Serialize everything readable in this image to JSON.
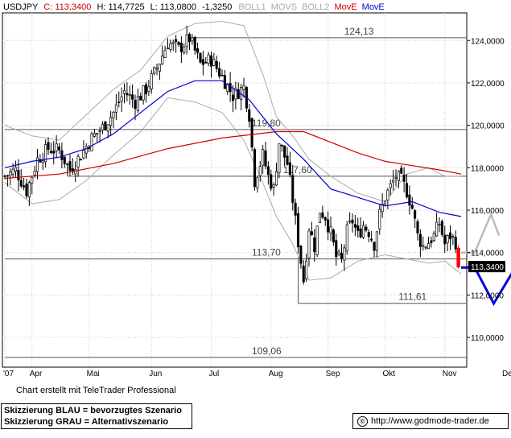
{
  "header": {
    "symbol": "USDJPY",
    "close": "C: 113,3400",
    "high": "H: 114,7725",
    "low": "L: 113,0800",
    "change": "-1,3250",
    "indicators": [
      "BOLL1",
      "MOVS",
      "BOLL2",
      "MovE",
      "MovE"
    ]
  },
  "footer": {
    "credit": "Chart erstellt mit TeleTrader Professional",
    "legend_blue": "Skizzierung BLAU = bevorzugtes Szenario",
    "legend_grey": "Skizzierung GRAU = Alternativszenario",
    "url": "http://www.godmode-trader.de",
    "url_icon": "copyright-icon"
  },
  "colors": {
    "price": "#000000",
    "ma_fast": "#0000cc",
    "ma_slow": "#cc0000",
    "bollinger": "#aaaaaa",
    "scenario_blue": "#0000dd",
    "scenario_grey": "#bbbbbb",
    "last_candle": "#ff0000",
    "level_line": "#555555"
  },
  "chart_data": {
    "type": "candlestick",
    "title": "USDJPY",
    "ylim": [
      108.6,
      125.3
    ],
    "y_ticks": [
      "110,0000",
      "112,0000",
      "114,0000",
      "116,0000",
      "118,0000",
      "120,0000",
      "122,0000",
      "124,0000"
    ],
    "y_tick_values": [
      110,
      112,
      114,
      116,
      118,
      120,
      122,
      124
    ],
    "x_ticks": [
      "'07",
      "Apr",
      "Mai",
      "Jun",
      "Jul",
      "Aug",
      "Sep",
      "Okt",
      "Nov",
      "Dez"
    ],
    "x_tick_index": [
      0,
      10,
      31,
      54,
      76,
      98,
      119,
      140,
      162,
      184
    ],
    "last_price_label": "113,3400",
    "last_price": 113.34,
    "n_sessions": 168,
    "levels": [
      {
        "label": "124,13",
        "value": 124.13,
        "from": 68,
        "to": 175
      },
      {
        "label": "119,80",
        "value": 119.8,
        "from": 0,
        "to": 190
      },
      {
        "label": "117,60",
        "value": 117.6,
        "from": 23,
        "to": 190
      },
      {
        "label": "113,70",
        "value": 113.7,
        "from": 0,
        "to": 190
      },
      {
        "label": "111,61",
        "value": 111.61,
        "from": 108,
        "to": 190
      },
      {
        "label": "109,06",
        "value": 109.06,
        "from": 0,
        "to": 190
      }
    ],
    "close_path": [
      [
        0,
        117.6
      ],
      [
        4,
        117.9
      ],
      [
        8,
        116.9
      ],
      [
        12,
        118.4
      ],
      [
        16,
        118.9
      ],
      [
        20,
        118.8
      ],
      [
        24,
        117.9
      ],
      [
        28,
        118.6
      ],
      [
        32,
        119.4
      ],
      [
        36,
        119.9
      ],
      [
        40,
        120.6
      ],
      [
        44,
        121.6
      ],
      [
        48,
        121.1
      ],
      [
        52,
        121.7
      ],
      [
        56,
        122.7
      ],
      [
        60,
        123.9
      ],
      [
        64,
        123.6
      ],
      [
        68,
        124.1
      ],
      [
        72,
        122.9
      ],
      [
        76,
        123.1
      ],
      [
        80,
        122.3
      ],
      [
        84,
        121.4
      ],
      [
        88,
        121.8
      ],
      [
        90,
        120.5
      ],
      [
        92,
        117.4
      ],
      [
        95,
        118.6
      ],
      [
        97,
        117.6
      ],
      [
        99,
        117.0
      ],
      [
        101,
        119.2
      ],
      [
        104,
        118.2
      ],
      [
        106,
        116.5
      ],
      [
        108,
        114.5
      ],
      [
        110,
        112.7
      ],
      [
        112,
        115.2
      ],
      [
        114,
        114.3
      ],
      [
        116,
        116.0
      ],
      [
        118,
        115.7
      ],
      [
        120,
        114.9
      ],
      [
        122,
        113.8
      ],
      [
        124,
        113.6
      ],
      [
        126,
        115.0
      ],
      [
        128,
        115.5
      ],
      [
        130,
        114.8
      ],
      [
        132,
        115.3
      ],
      [
        134,
        115.0
      ],
      [
        136,
        114.4
      ],
      [
        138,
        115.8
      ],
      [
        140,
        116.6
      ],
      [
        142,
        117.1
      ],
      [
        144,
        117.6
      ],
      [
        146,
        117.4
      ],
      [
        148,
        116.9
      ],
      [
        150,
        116.1
      ],
      [
        152,
        114.8
      ],
      [
        154,
        114.3
      ],
      [
        156,
        114.5
      ],
      [
        158,
        114.8
      ],
      [
        160,
        115.4
      ],
      [
        162,
        114.4
      ],
      [
        164,
        114.8
      ],
      [
        166,
        114.5
      ],
      [
        167,
        113.34
      ]
    ],
    "ma_fast_path": [
      [
        0,
        118.0
      ],
      [
        10,
        118.3
      ],
      [
        20,
        118.5
      ],
      [
        30,
        118.9
      ],
      [
        40,
        119.6
      ],
      [
        50,
        120.6
      ],
      [
        60,
        121.6
      ],
      [
        70,
        122.1
      ],
      [
        80,
        122.1
      ],
      [
        90,
        121.2
      ],
      [
        100,
        119.6
      ],
      [
        110,
        118.4
      ],
      [
        120,
        117.0
      ],
      [
        130,
        116.6
      ],
      [
        140,
        116.2
      ],
      [
        150,
        116.4
      ],
      [
        160,
        115.9
      ],
      [
        168,
        115.7
      ]
    ],
    "ma_slow_path": [
      [
        0,
        117.5
      ],
      [
        20,
        117.7
      ],
      [
        40,
        118.2
      ],
      [
        60,
        118.9
      ],
      [
        80,
        119.4
      ],
      [
        100,
        119.7
      ],
      [
        110,
        119.7
      ],
      [
        120,
        119.2
      ],
      [
        130,
        118.7
      ],
      [
        140,
        118.3
      ],
      [
        150,
        118.1
      ],
      [
        160,
        117.9
      ],
      [
        168,
        117.7
      ]
    ],
    "boll_upper_path": [
      [
        0,
        120.0
      ],
      [
        10,
        119.5
      ],
      [
        20,
        119.3
      ],
      [
        30,
        120.5
      ],
      [
        40,
        121.7
      ],
      [
        50,
        122.6
      ],
      [
        60,
        124.2
      ],
      [
        70,
        124.8
      ],
      [
        80,
        124.9
      ],
      [
        88,
        124.7
      ],
      [
        95,
        122.4
      ],
      [
        100,
        120.4
      ],
      [
        106,
        119.5
      ],
      [
        112,
        118.4
      ],
      [
        120,
        117.6
      ],
      [
        130,
        116.8
      ],
      [
        140,
        116.4
      ],
      [
        148,
        117.7
      ],
      [
        156,
        118.0
      ],
      [
        162,
        117.6
      ],
      [
        168,
        117.6
      ]
    ],
    "boll_lower_path": [
      [
        0,
        117.3
      ],
      [
        10,
        116.3
      ],
      [
        20,
        116.5
      ],
      [
        30,
        117.4
      ],
      [
        40,
        118.6
      ],
      [
        50,
        119.7
      ],
      [
        60,
        121.3
      ],
      [
        70,
        121.1
      ],
      [
        80,
        120.6
      ],
      [
        88,
        119.3
      ],
      [
        95,
        117.3
      ],
      [
        100,
        115.7
      ],
      [
        106,
        114.4
      ],
      [
        112,
        112.7
      ],
      [
        120,
        112.8
      ],
      [
        130,
        113.6
      ],
      [
        140,
        113.9
      ],
      [
        148,
        113.7
      ],
      [
        156,
        113.5
      ],
      [
        162,
        113.6
      ],
      [
        168,
        113.0
      ]
    ],
    "scenario_blue_path": [
      [
        168,
        113.3
      ],
      [
        173,
        113.3
      ],
      [
        180,
        111.6
      ],
      [
        188,
        113.3
      ],
      [
        202,
        109.1
      ],
      [
        210,
        111.0
      ]
    ],
    "scenario_grey_path": [
      [
        168,
        114.0
      ],
      [
        173,
        114.0
      ],
      [
        179,
        115.8
      ],
      [
        182,
        114.8
      ]
    ]
  }
}
